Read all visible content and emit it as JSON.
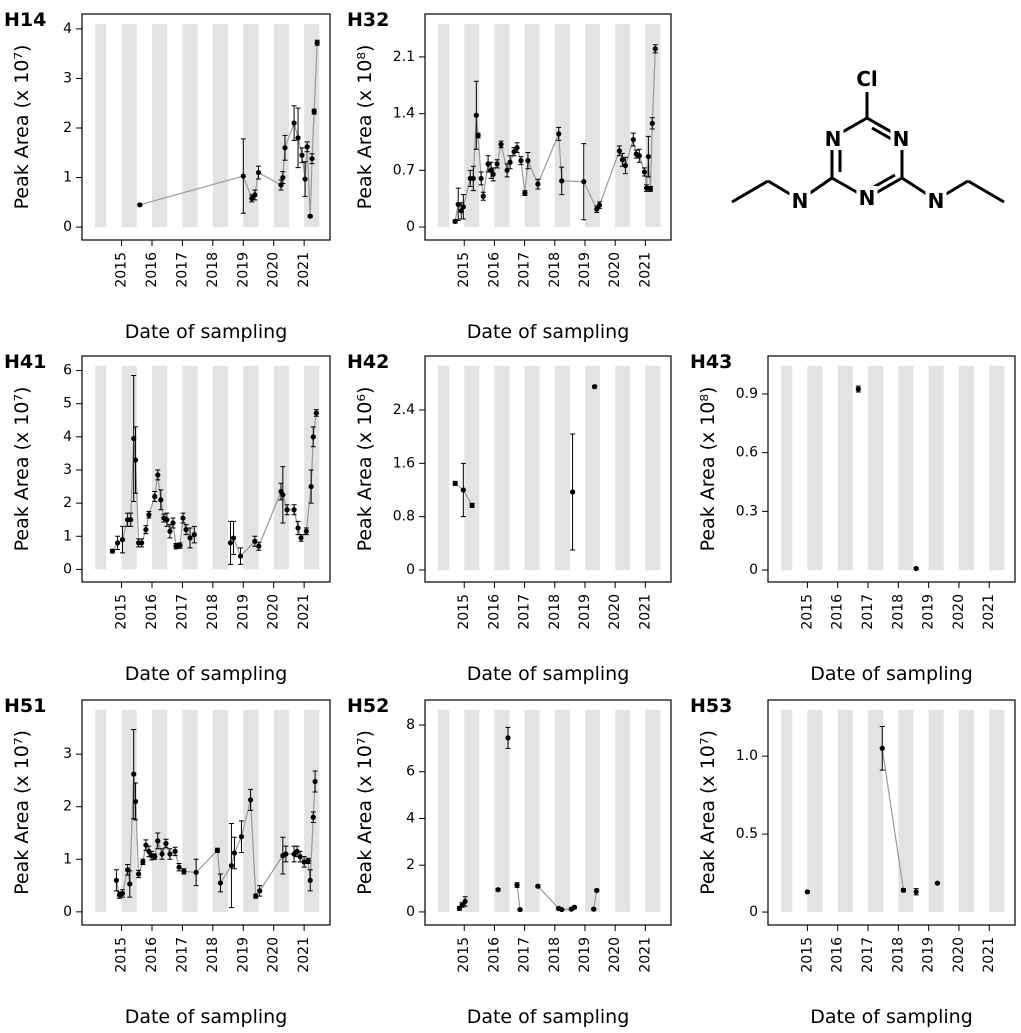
{
  "chart_data": [
    {
      "type": "line",
      "label": "H14",
      "ylabel": "Peak Area (x 10⁷)",
      "xlabel": "Date of sampling",
      "color": "#000000",
      "line_color": "#999999",
      "x": [
        2015.6,
        2019.0,
        2019.28,
        2019.38,
        2019.5,
        2020.24,
        2020.3,
        2020.37,
        2020.67,
        2020.8,
        2020.93,
        2021.03,
        2021.1,
        2021.2,
        2021.26,
        2021.33,
        2021.43
      ],
      "values": [
        0.45,
        1.03,
        0.58,
        0.65,
        1.1,
        0.85,
        1.0,
        1.6,
        2.1,
        1.8,
        1.45,
        0.97,
        1.62,
        0.22,
        1.38,
        2.33,
        3.72
      ],
      "errors": [
        0.02,
        0.75,
        0.07,
        0.1,
        0.13,
        0.1,
        0.12,
        0.25,
        0.35,
        0.6,
        0.15,
        0.35,
        0.1,
        0.02,
        0.1,
        0.05,
        0.05
      ],
      "xlim": [
        2013.7,
        2021.85
      ],
      "xticks": [
        2015,
        2016,
        2017,
        2018,
        2019,
        2020,
        2021
      ],
      "ylim": [
        -0.26,
        4.3
      ],
      "yticks": [
        0,
        1,
        2,
        3,
        4
      ]
    },
    {
      "type": "line",
      "label": "H32",
      "ylabel": "Peak Area (x 10⁸)",
      "xlabel": "Date of sampling",
      "color": "#000000",
      "line_color": "#999999",
      "x": [
        2014.7,
        2014.8,
        2014.9,
        2014.97,
        2015.2,
        2015.3,
        2015.4,
        2015.46,
        2015.56,
        2015.63,
        2015.79,
        2015.89,
        2015.96,
        2016.09,
        2016.22,
        2016.42,
        2016.52,
        2016.65,
        2016.75,
        2016.88,
        2017.01,
        2017.11,
        2017.44,
        2018.13,
        2018.23,
        2018.96,
        2019.39,
        2019.48,
        2020.14,
        2020.24,
        2020.34,
        2020.6,
        2020.7,
        2020.8,
        2020.97,
        2021.04,
        2021.1,
        2021.17,
        2021.23,
        2021.33
      ],
      "values": [
        0.07,
        0.28,
        0.2,
        0.25,
        0.6,
        0.6,
        1.38,
        1.13,
        0.6,
        0.38,
        0.78,
        0.7,
        0.65,
        0.78,
        1.02,
        0.7,
        0.8,
        0.93,
        0.98,
        0.82,
        0.42,
        0.82,
        0.53,
        1.15,
        0.57,
        0.56,
        0.22,
        0.27,
        0.94,
        0.83,
        0.76,
        1.08,
        0.9,
        0.88,
        0.68,
        0.48,
        0.87,
        0.47,
        1.28,
        2.2
      ],
      "errors": [
        0.02,
        0.2,
        0.1,
        0.15,
        0.1,
        0.15,
        0.42,
        0.03,
        0.08,
        0.05,
        0.1,
        0.1,
        0.08,
        0.05,
        0.04,
        0.08,
        0.08,
        0.05,
        0.06,
        0.05,
        0.03,
        0.1,
        0.06,
        0.08,
        0.17,
        0.47,
        0.04,
        0.04,
        0.06,
        0.08,
        0.1,
        0.08,
        0.05,
        0.08,
        0.05,
        0.04,
        0.25,
        0.03,
        0.07,
        0.05
      ],
      "xlim": [
        2013.7,
        2021.85
      ],
      "xticks": [
        2015,
        2016,
        2017,
        2018,
        2019,
        2020,
        2021
      ],
      "ylim": [
        -0.16,
        2.63
      ],
      "yticks": [
        0,
        0.7,
        1.4,
        2.1
      ]
    },
    {
      "type": "line",
      "label": "H41",
      "ylabel": "Peak Area (x 10⁷)",
      "xlabel": "Date of sampling",
      "color": "#000000",
      "line_color": "#999999",
      "x": [
        2014.7,
        2014.87,
        2015.03,
        2015.2,
        2015.3,
        2015.4,
        2015.46,
        2015.56,
        2015.66,
        2015.8,
        2015.9,
        2016.09,
        2016.19,
        2016.29,
        2016.39,
        2016.49,
        2016.59,
        2016.69,
        2016.79,
        2016.92,
        2017.02,
        2017.12,
        2017.25,
        2017.39,
        null,
        2018.58,
        2018.68,
        2018.91,
        2019.38,
        2019.51,
        2020.24,
        2020.3,
        2020.44,
        2020.67,
        2020.8,
        2020.9,
        2021.07,
        2021.23,
        2021.3,
        2021.4
      ],
      "values": [
        0.55,
        0.8,
        0.9,
        1.5,
        1.5,
        3.95,
        3.3,
        0.8,
        0.8,
        1.2,
        1.65,
        2.2,
        2.85,
        2.1,
        1.55,
        1.5,
        1.15,
        1.4,
        0.7,
        0.72,
        1.55,
        1.2,
        0.95,
        1.05,
        null,
        0.8,
        0.95,
        0.4,
        0.85,
        0.7,
        2.35,
        2.25,
        1.8,
        1.8,
        1.25,
        0.95,
        1.15,
        2.5,
        4.0,
        4.72
      ],
      "errors": [
        0.05,
        0.2,
        0.4,
        0.2,
        0.2,
        1.9,
        1.0,
        0.12,
        0.12,
        0.12,
        0.1,
        0.15,
        0.15,
        0.3,
        0.12,
        0.2,
        0.2,
        0.15,
        0.08,
        0.08,
        0.15,
        0.15,
        0.3,
        0.25,
        null,
        0.65,
        0.5,
        0.25,
        0.15,
        0.12,
        0.25,
        0.85,
        0.15,
        0.15,
        0.2,
        0.1,
        0.1,
        0.5,
        0.3,
        0.1
      ],
      "xlim": [
        2013.7,
        2021.85
      ],
      "xticks": [
        2015,
        2016,
        2017,
        2018,
        2019,
        2020,
        2021
      ],
      "ylim": [
        -0.38,
        6.44
      ],
      "yticks": [
        0,
        1,
        2,
        3,
        4,
        5,
        6
      ]
    },
    {
      "type": "line",
      "label": "H42",
      "ylabel": "Peak Area (x 10⁶)",
      "xlabel": "Date of sampling",
      "color": "#000000",
      "line_color": "#999999",
      "x": [
        2014.7,
        2014.97,
        2015.26,
        null,
        2018.59,
        null,
        2019.32
      ],
      "values": [
        1.3,
        1.2,
        0.97,
        null,
        1.17,
        null,
        2.75
      ],
      "errors": [
        0.03,
        0.4,
        0.03,
        null,
        0.87,
        null,
        0.02
      ],
      "xlim": [
        2013.7,
        2021.85
      ],
      "xticks": [
        2015,
        2016,
        2017,
        2018,
        2019,
        2020,
        2021
      ],
      "ylim": [
        -0.18,
        3.21
      ],
      "yticks": [
        0,
        0.8,
        1.6,
        2.4
      ]
    },
    {
      "type": "line",
      "label": "H43",
      "ylabel": "Peak Area (x 10⁸)",
      "xlabel": "Date of sampling",
      "color": "#000000",
      "line_color": "#999999",
      "x": [
        2016.68,
        null,
        2018.59
      ],
      "values": [
        0.925,
        null,
        0.008
      ],
      "errors": [
        0.015,
        null,
        0.005
      ],
      "xlim": [
        2013.7,
        2021.85
      ],
      "xticks": [
        2015,
        2016,
        2017,
        2018,
        2019,
        2020,
        2021
      ],
      "ylim": [
        -0.061,
        1.094
      ],
      "yticks": [
        0,
        0.3,
        0.6,
        0.9
      ]
    },
    {
      "type": "line",
      "label": "H51",
      "ylabel": "Peak Area (x 10⁷)",
      "xlabel": "Date of sampling",
      "color": "#000000",
      "line_color": "#999999",
      "x": [
        2014.83,
        2014.93,
        2015.03,
        2015.2,
        2015.27,
        2015.4,
        2015.46,
        2015.56,
        2015.7,
        2015.8,
        2015.9,
        2015.99,
        2016.09,
        2016.19,
        2016.33,
        2016.46,
        2016.59,
        2016.76,
        2016.89,
        2017.05,
        2017.45,
        2018.15,
        2018.25,
        2018.61,
        2018.71,
        2018.94,
        2019.24,
        2019.41,
        2019.54,
        2020.3,
        2020.4,
        2020.67,
        2020.77,
        2020.87,
        2021.0,
        2021.13,
        2021.2,
        2021.3,
        2021.36
      ],
      "values": [
        0.6,
        0.32,
        0.35,
        0.8,
        0.53,
        2.62,
        2.1,
        0.72,
        0.95,
        1.27,
        1.15,
        1.07,
        1.05,
        1.35,
        1.1,
        1.3,
        1.1,
        1.15,
        0.85,
        0.77,
        0.75,
        1.17,
        0.55,
        0.88,
        1.12,
        1.43,
        2.13,
        0.3,
        0.4,
        1.07,
        1.1,
        1.1,
        1.15,
        1.05,
        0.95,
        0.97,
        0.6,
        1.8,
        2.48
      ],
      "errors": [
        0.2,
        0.06,
        0.07,
        0.1,
        0.25,
        0.85,
        0.35,
        0.07,
        0.05,
        0.1,
        0.1,
        0.08,
        0.05,
        0.15,
        0.1,
        0.08,
        0.1,
        0.08,
        0.07,
        0.05,
        0.25,
        0.04,
        0.17,
        0.8,
        0.3,
        0.3,
        0.2,
        0.04,
        0.1,
        0.35,
        0.15,
        0.15,
        0.1,
        0.1,
        0.1,
        0.05,
        0.2,
        0.1,
        0.2
      ],
      "xlim": [
        2013.7,
        2021.85
      ],
      "xticks": [
        2015,
        2016,
        2017,
        2018,
        2019,
        2020,
        2021
      ],
      "ylim": [
        -0.25,
        4.03
      ],
      "yticks": [
        0,
        1,
        2,
        3
      ]
    },
    {
      "type": "line",
      "label": "H52",
      "ylabel": "Peak Area (x 10⁷)",
      "xlabel": "Date of sampling",
      "color": "#000000",
      "line_color": "#999999",
      "x": [
        2014.84,
        2014.93,
        2015.03,
        null,
        2016.12,
        null,
        2016.45,
        null,
        2016.75,
        2016.85,
        null,
        2017.44,
        2018.13,
        2018.23,
        2018.55,
        2018.65,
        null,
        2019.29,
        2019.39
      ],
      "values": [
        0.15,
        0.3,
        0.45,
        null,
        0.95,
        null,
        7.45,
        null,
        1.15,
        0.1,
        null,
        1.1,
        0.15,
        0.1,
        0.12,
        0.2,
        null,
        0.12,
        0.92
      ],
      "errors": [
        0.08,
        0.1,
        0.2,
        null,
        0.05,
        null,
        0.45,
        null,
        0.1,
        0.05,
        null,
        0.05,
        0.05,
        0.04,
        0.04,
        0.05,
        null,
        0.05,
        0.05
      ],
      "xlim": [
        2013.7,
        2021.85
      ],
      "xticks": [
        2015,
        2016,
        2017,
        2018,
        2019,
        2020,
        2021
      ],
      "ylim": [
        -0.56,
        9.07
      ],
      "yticks": [
        0,
        2,
        4,
        6,
        8
      ]
    },
    {
      "type": "line",
      "label": "H53",
      "ylabel": "Peak Area (x 10⁷)",
      "xlabel": "Date of sampling",
      "color": "#000000",
      "line_color": "#999999",
      "x": [
        2015.0,
        null,
        2017.47,
        2018.17,
        null,
        2018.59,
        null,
        2019.29
      ],
      "values": [
        0.13,
        null,
        1.05,
        0.14,
        null,
        0.13,
        null,
        0.185
      ],
      "errors": [
        0.005,
        null,
        0.14,
        0.01,
        null,
        0.02,
        null,
        0.005
      ],
      "xlim": [
        2013.7,
        2021.85
      ],
      "xticks": [
        2015,
        2016,
        2017,
        2018,
        2019,
        2020,
        2021
      ],
      "ylim": [
        -0.083,
        1.36
      ],
      "yticks": [
        0,
        0.5,
        {
          "value": 1,
          "label": "1.0"
        }
      ]
    }
  ],
  "structure": {
    "atoms": [
      "Cl",
      "N",
      "N",
      "N",
      "N",
      "N"
    ]
  }
}
